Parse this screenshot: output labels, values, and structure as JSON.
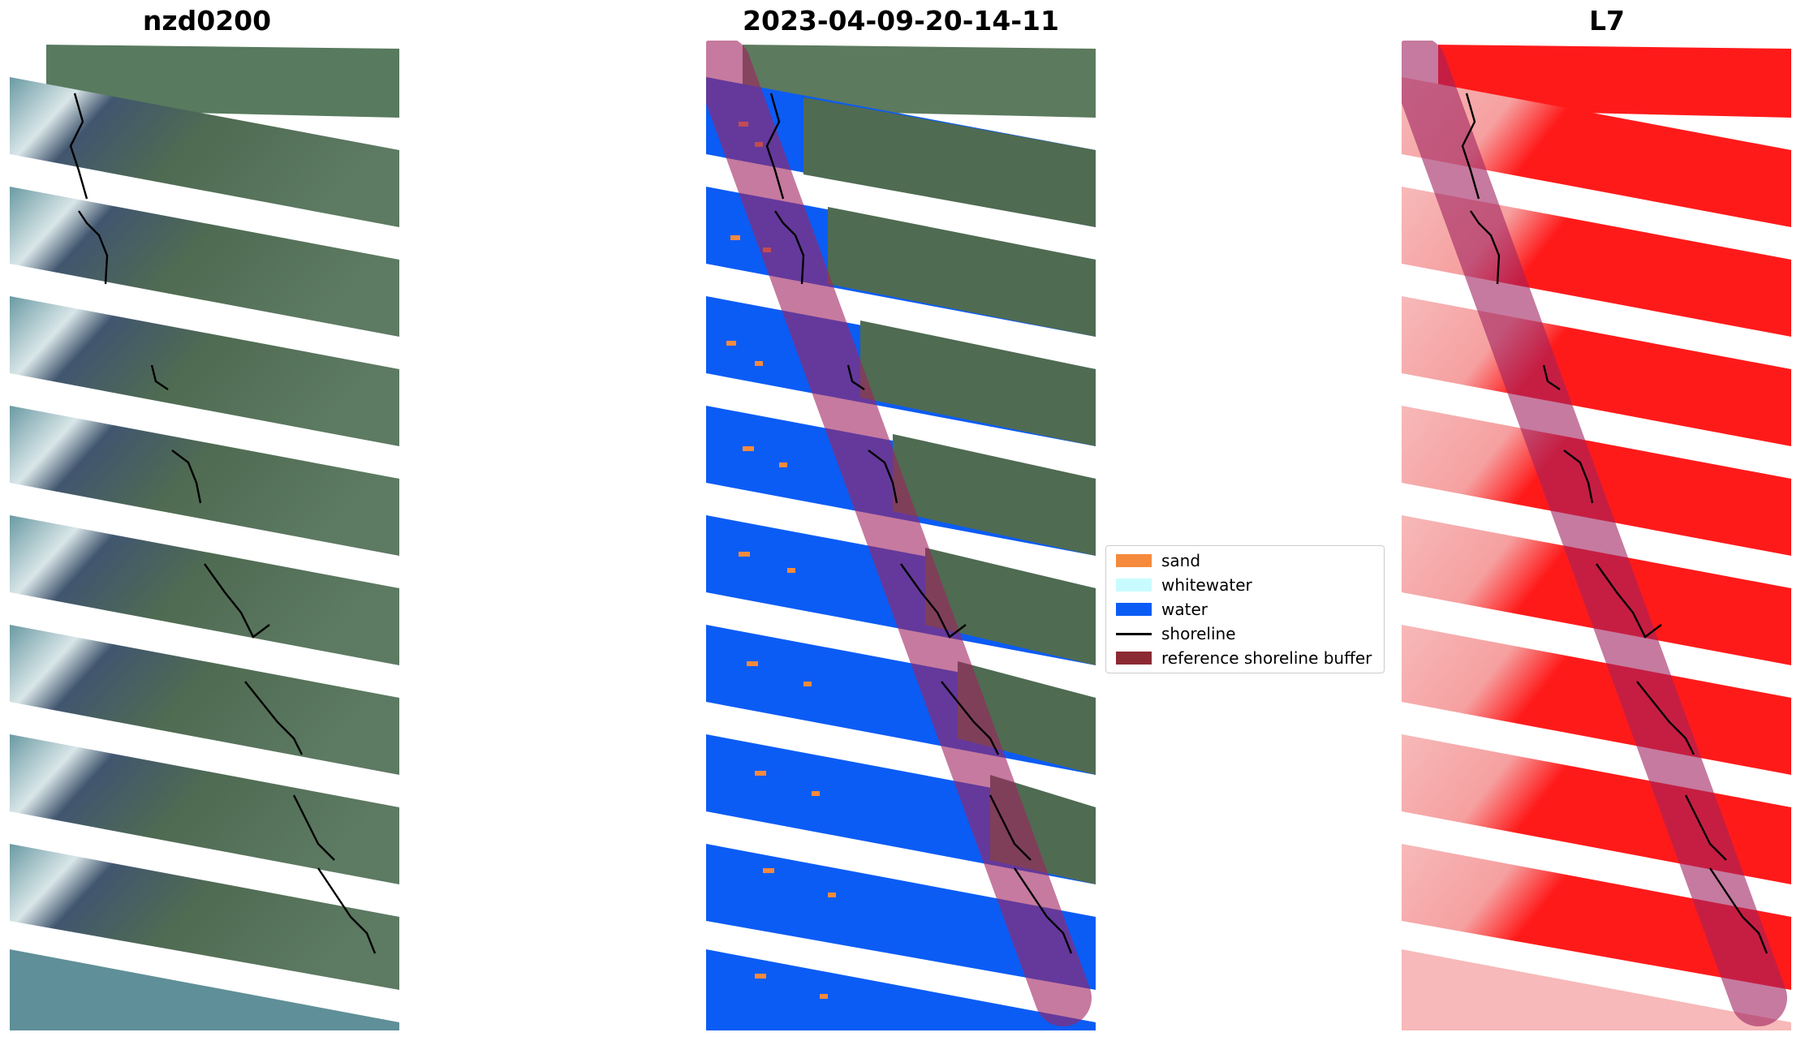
{
  "panels": [
    {
      "title": "nzd0200"
    },
    {
      "title": "2023-04-09-20-14-11"
    },
    {
      "title": "L7"
    }
  ],
  "legend": {
    "items": [
      {
        "label": "sand",
        "color": "#f58a3c",
        "kind": "patch"
      },
      {
        "label": "whitewater",
        "color": "#c8fbff",
        "kind": "patch"
      },
      {
        "label": "water",
        "color": "#0b5cf5",
        "kind": "patch"
      },
      {
        "label": "shoreline",
        "color": "#000000",
        "kind": "line"
      },
      {
        "label": "reference shoreline buffer",
        "color": "#8b2a33",
        "kind": "patch"
      }
    ]
  },
  "colors": {
    "land": "#4f6b52",
    "sea": "#5c8b94",
    "water_class": "#0b5cf5",
    "heat_high": "#ff1a1a",
    "heat_low": "#f7b9b9",
    "buffer_overlay": "#a0225f"
  }
}
